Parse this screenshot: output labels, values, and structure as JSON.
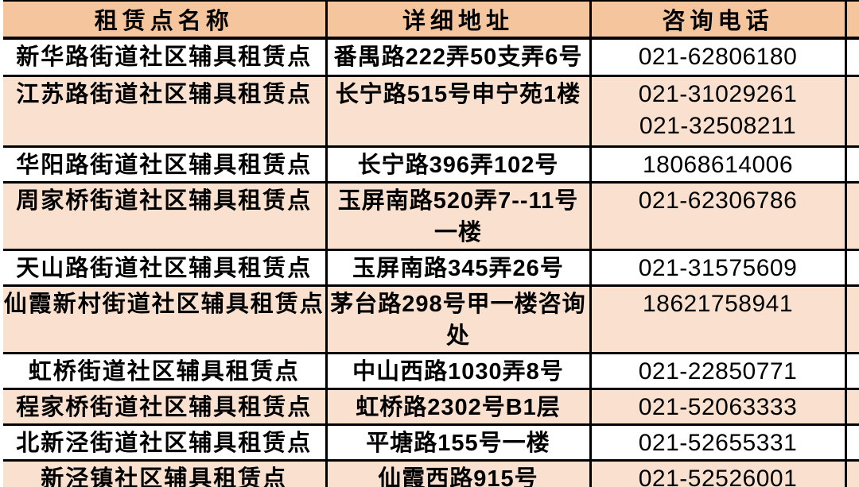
{
  "colors": {
    "header_bg": "#f5c59e",
    "stripe_bg": "#fae1cf",
    "plain_bg": "#ffffff",
    "border": "#000000",
    "text": "#000000"
  },
  "table": {
    "columns": [
      "租赁点名称",
      "详细地址",
      "咨询电话"
    ],
    "rows": [
      {
        "name": "新华路街道社区辅具租赁点",
        "address_lines": [
          "番禺路222弄50支弄6号"
        ],
        "phones": [
          "021-62806180"
        ]
      },
      {
        "name": "江苏路街道社区辅具租赁点",
        "address_lines": [
          "长宁路515号申宁苑1楼"
        ],
        "phones": [
          "021-31029261",
          "021-32508211"
        ]
      },
      {
        "name": "华阳路街道社区辅具租赁点",
        "address_lines": [
          "长宁路396弄102号"
        ],
        "phones": [
          "18068614006"
        ]
      },
      {
        "name": "周家桥街道社区辅具租赁点",
        "address_lines": [
          "玉屏南路520弄7--11号",
          "一楼"
        ],
        "phones": [
          "021-62306786"
        ]
      },
      {
        "name": "天山路街道社区辅具租赁点",
        "address_lines": [
          "玉屏南路345弄26号"
        ],
        "phones": [
          "021-31575609"
        ]
      },
      {
        "name": "仙霞新村街道社区辅具租赁点",
        "address_lines": [
          "茅台路298号甲一楼咨询",
          "处"
        ],
        "phones": [
          "18621758941"
        ]
      },
      {
        "name": "虹桥街道社区辅具租赁点",
        "address_lines": [
          "中山西路1030弄8号"
        ],
        "phones": [
          "021-22850771"
        ]
      },
      {
        "name": "程家桥街道社区辅具租赁点",
        "address_lines": [
          "虹桥路2302号B1层"
        ],
        "phones": [
          "021-52063333"
        ]
      },
      {
        "name": "北新泾街道社区辅具租赁点",
        "address_lines": [
          "平塘路155号一楼"
        ],
        "phones": [
          "021-52655331"
        ]
      },
      {
        "name": "新泾镇社区辅具租赁点",
        "address_lines": [
          "仙霞西路915号"
        ],
        "phones": [
          "021-52526001"
        ]
      }
    ]
  },
  "chart_data": {
    "type": "table",
    "title": "",
    "columns": [
      "租赁点名称",
      "详细地址",
      "咨询电话"
    ],
    "rows": [
      [
        "新华路街道社区辅具租赁点",
        "番禺路222弄50支弄6号",
        "021-62806180"
      ],
      [
        "江苏路街道社区辅具租赁点",
        "长宁路515号申宁苑1楼",
        "021-31029261 021-32508211"
      ],
      [
        "华阳路街道社区辅具租赁点",
        "长宁路396弄102号",
        "18068614006"
      ],
      [
        "周家桥街道社区辅具租赁点",
        "玉屏南路520弄7--11号一楼",
        "021-62306786"
      ],
      [
        "天山路街道社区辅具租赁点",
        "玉屏南路345弄26号",
        "021-31575609"
      ],
      [
        "仙霞新村街道社区辅具租赁点",
        "茅台路298号甲一楼咨询处",
        "18621758941"
      ],
      [
        "虹桥街道社区辅具租赁点",
        "中山西路1030弄8号",
        "021-22850771"
      ],
      [
        "程家桥街道社区辅具租赁点",
        "虹桥路2302号B1层",
        "021-52063333"
      ],
      [
        "北新泾街道社区辅具租赁点",
        "平塘路155号一楼",
        "021-52655331"
      ],
      [
        "新泾镇社区辅具租赁点",
        "仙霞西路915号",
        "021-52526001"
      ]
    ]
  }
}
